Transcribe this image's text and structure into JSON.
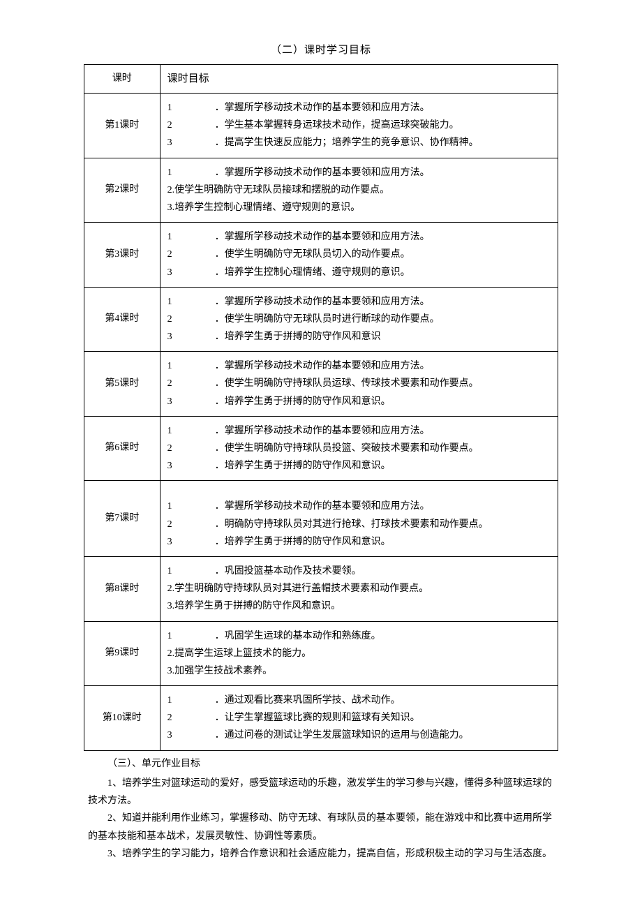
{
  "section_title": "（二）课时学习目标",
  "table": {
    "headers": {
      "lesson": "课时",
      "goals": "课时目标"
    },
    "rows": [
      {
        "lesson": "第1课时",
        "style": "spaced",
        "items": [
          {
            "n": "1",
            "t": "．掌握所学移动技术动作的基本要领和应用方法。"
          },
          {
            "n": "2",
            "t": "．学生基本掌握转身运球技术动作，提高运球突破能力。"
          },
          {
            "n": "3",
            "t": "．提高学生快速反应能力；培养学生的竞争意识、协作精神。"
          }
        ]
      },
      {
        "lesson": "第2课时",
        "style": "mixed",
        "items": [
          {
            "n": "1",
            "style": "spaced",
            "t": "．掌握所学移动技术动作的基本要领和应用方法。"
          },
          {
            "n": "2.",
            "style": "compact",
            "t": "使学生明确防守无球队员接球和摆脱的动作要点。"
          },
          {
            "n": "3.",
            "style": "compact",
            "t": "培养学生控制心理情绪、遵守规则的意识。"
          }
        ]
      },
      {
        "lesson": "第3课时",
        "style": "spaced",
        "items": [
          {
            "n": "1",
            "t": "．掌握所学移动技术动作的基本要领和应用方法。"
          },
          {
            "n": "2",
            "t": "．使学生明确防守无球队员切入的动作要点。"
          },
          {
            "n": "3",
            "t": "．培养学生控制心理情绪、遵守规则的意识。"
          }
        ]
      },
      {
        "lesson": "第4课时",
        "style": "spaced",
        "items": [
          {
            "n": "1",
            "t": "．掌握所学移动技术动作的基本要领和应用方法。"
          },
          {
            "n": "2",
            "t": "．使学生明确防守无球队员时进行断球的动作要点。"
          },
          {
            "n": "3",
            "t": "．培养学生勇于拼搏的防守作风和意识"
          }
        ]
      },
      {
        "lesson": "第5课时",
        "style": "spaced",
        "items": [
          {
            "n": "1",
            "t": "．掌握所学移动技术动作的基本要领和应用方法。"
          },
          {
            "n": "2",
            "t": "．使学生明确防守持球队员运球、传球技术要素和动作要点。"
          },
          {
            "n": "3",
            "t": "．培养学生勇于拼搏的防守作风和意识。"
          }
        ]
      },
      {
        "lesson": "第6课时",
        "style": "spaced",
        "items": [
          {
            "n": "1",
            "t": "．掌握所学移动技术动作的基本要领和应用方法。"
          },
          {
            "n": "2",
            "t": "．使学生明确防守持球队员投篮、突破技术要素和动作要点。"
          },
          {
            "n": "3",
            "t": "．培养学生勇于拼搏的防守作风和意识。"
          }
        ]
      },
      {
        "lesson": "第7课时",
        "style": "spaced",
        "pad_top": true,
        "items": [
          {
            "n": "1",
            "t": "．掌握所学移动技术动作的基本要领和应用方法。"
          },
          {
            "n": "2",
            "t": "．明确防守持球队员对其进行抢球、打球技术要素和动作要点。"
          },
          {
            "n": "3",
            "t": "．培养学生勇于拼搏的防守作风和意识。"
          }
        ]
      },
      {
        "lesson": "第8课时",
        "style": "mixed",
        "items": [
          {
            "n": "1",
            "style": "spaced",
            "t": "．巩固投篮基本动作及技术要领。"
          },
          {
            "n": "2.",
            "style": "compact",
            "t": "学生明确防守持球队员对其进行盖帽技术要素和动作要点。"
          },
          {
            "n": "3.",
            "style": "compact",
            "t": "培养学生勇于拼搏的防守作风和意识。"
          }
        ]
      },
      {
        "lesson": "第9课时",
        "style": "mixed",
        "items": [
          {
            "n": "1",
            "style": "spaced",
            "t": "．巩固学生运球的基本动作和熟练度。"
          },
          {
            "n": "2.",
            "style": "compact",
            "t": "提高学生运球上篮技术的能力。"
          },
          {
            "n": "3.",
            "style": "compact",
            "t": "加强学生技战术素养。"
          }
        ]
      },
      {
        "lesson": "第10课时",
        "style": "spaced",
        "items": [
          {
            "n": "1",
            "t": "．通过观看比赛来巩固所学技、战术动作。"
          },
          {
            "n": "2",
            "t": "．让学生掌握篮球比赛的规则和篮球有关知识。"
          },
          {
            "n": "3",
            "t": "．通过问卷的测试让学生发展篮球知识的运用与创造能力。"
          }
        ]
      }
    ]
  },
  "post": {
    "heading": "（三）、单元作业目标",
    "paras": [
      "1、培养学生对篮球运动的爱好，感受篮球运动的乐趣，激发学生的学习参与兴趣，懂得多种篮球运球的技术方法。",
      "2、知道并能利用作业练习，掌握移动、防守无球、有球队员的基本要领，能在游戏中和比赛中运用所学的基本技能和基本战术，发展灵敏性、协调性等素质。",
      "3、培养学生的学习能力，培养合作意识和社会适应能力，提高自信，形成积极主动的学习与生活态度。"
    ]
  }
}
